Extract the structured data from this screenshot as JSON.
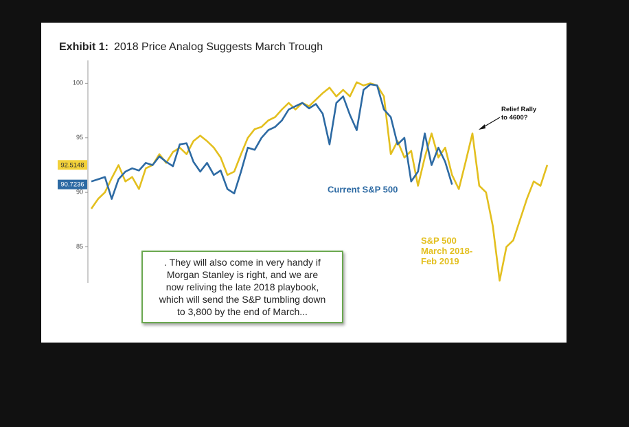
{
  "chart_data": {
    "type": "line",
    "exhibit": "Exhibit 1:",
    "title": "2018 Price Analog Suggests March Trough",
    "ylim": [
      81.7,
      102.1
    ],
    "yticks": [
      85,
      90,
      95,
      100
    ],
    "series": [
      {
        "name": [
          "S&P 500",
          "March 2018-",
          "Feb 2019"
        ],
        "color": "#e3bf1e",
        "current": 92.5148,
        "values": [
          88.5,
          89.4,
          90.0,
          91.3,
          92.5,
          91.0,
          91.4,
          90.3,
          92.2,
          92.5,
          93.5,
          92.7,
          93.7,
          94.1,
          93.5,
          94.7,
          95.2,
          94.7,
          94.1,
          93.2,
          91.6,
          91.9,
          93.5,
          95.0,
          95.8,
          96.0,
          96.6,
          96.9,
          97.6,
          98.2,
          97.6,
          98.2,
          97.9,
          98.5,
          99.1,
          99.6,
          98.8,
          99.4,
          98.8,
          100.1,
          99.8,
          100.0,
          99.8,
          98.8,
          93.5,
          94.7,
          93.2,
          93.8,
          90.6,
          93.2,
          95.4,
          93.2,
          94.1,
          91.6,
          90.3,
          92.8,
          95.4,
          90.6,
          90.0,
          86.9,
          81.9,
          85.0,
          85.6,
          87.5,
          89.4,
          91.0,
          90.6,
          92.5148
        ]
      },
      {
        "name": "Current S&P 500",
        "color": "#2d6aa3",
        "current": 90.7236,
        "values": [
          91.0,
          91.2,
          91.4,
          89.4,
          91.2,
          91.9,
          92.2,
          92.0,
          92.7,
          92.5,
          93.3,
          92.8,
          92.4,
          94.4,
          94.5,
          92.8,
          91.9,
          92.7,
          91.6,
          92.0,
          90.3,
          89.9,
          91.9,
          94.1,
          93.9,
          95.0,
          95.7,
          96.0,
          96.6,
          97.6,
          97.9,
          98.2,
          97.7,
          98.1,
          97.2,
          94.4,
          98.2,
          98.8,
          97.1,
          95.7,
          99.4,
          99.9,
          99.8,
          97.6,
          96.9,
          94.4,
          95.0,
          91.0,
          91.9,
          95.4,
          92.5,
          94.1,
          92.8,
          90.7236
        ]
      }
    ],
    "annotations": [
      [
        "Relief Rally",
        "to 4600?"
      ]
    ],
    "callout": [
      ". They will also come in very handy if",
      "Morgan Stanley is right, and we are",
      "now reliving the late 2018 playbook,",
      "which will send the S&P tumbling down",
      "to 3,800 by the end of March..."
    ]
  }
}
